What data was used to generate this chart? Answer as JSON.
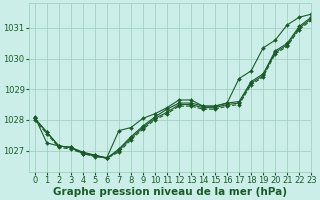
{
  "background_color": "#cceee8",
  "grid_color": "#99ccbb",
  "line_color": "#1a5c28",
  "xlabel": "Graphe pression niveau de la mer (hPa)",
  "xlabel_fontsize": 7.5,
  "tick_fontsize": 6,
  "xlim": [
    -0.5,
    23
  ],
  "ylim": [
    1026.3,
    1031.8
  ],
  "yticks": [
    1027,
    1028,
    1029,
    1030,
    1031
  ],
  "xticks": [
    0,
    1,
    2,
    3,
    4,
    5,
    6,
    7,
    8,
    9,
    10,
    11,
    12,
    13,
    14,
    15,
    16,
    17,
    18,
    19,
    20,
    21,
    22,
    23
  ],
  "series": [
    {
      "x": [
        0,
        1,
        2,
        3,
        4,
        5,
        6,
        7,
        8,
        9,
        10,
        11,
        12,
        13,
        14,
        15,
        16,
        17,
        18,
        19,
        20,
        21,
        22,
        23
      ],
      "y": [
        1028.05,
        1027.6,
        1027.15,
        1027.1,
        1026.95,
        1026.85,
        1026.75,
        1027.05,
        1027.45,
        1027.8,
        1028.1,
        1028.35,
        1028.55,
        1028.55,
        1028.45,
        1028.45,
        1028.55,
        1028.6,
        1029.25,
        1029.5,
        1030.25,
        1030.5,
        1031.05,
        1031.35
      ],
      "linestyle": "-",
      "marker": true
    },
    {
      "x": [
        0,
        1,
        2,
        3,
        4,
        5,
        6,
        7,
        8,
        9,
        10,
        11,
        12,
        13,
        14,
        15,
        16,
        17,
        18,
        19,
        20,
        21,
        22,
        23
      ],
      "y": [
        1028.05,
        1027.6,
        1027.15,
        1027.1,
        1026.9,
        1026.85,
        1026.75,
        1027.0,
        1027.4,
        1027.75,
        1028.05,
        1028.25,
        1028.5,
        1028.5,
        1028.4,
        1028.4,
        1028.5,
        1028.55,
        1029.2,
        1029.45,
        1030.2,
        1030.45,
        1031.0,
        1031.3
      ],
      "linestyle": "-",
      "marker": true
    },
    {
      "x": [
        0,
        1,
        2,
        3,
        4,
        5,
        6,
        7,
        8,
        9,
        10,
        11,
        12,
        13,
        14,
        15,
        16,
        17,
        18,
        19,
        20,
        21,
        22,
        23
      ],
      "y": [
        1028.0,
        1027.55,
        1027.1,
        1027.05,
        1026.9,
        1026.8,
        1026.75,
        1026.95,
        1027.35,
        1027.7,
        1028.0,
        1028.2,
        1028.45,
        1028.45,
        1028.35,
        1028.35,
        1028.45,
        1028.5,
        1029.15,
        1029.4,
        1030.15,
        1030.4,
        1030.95,
        1031.25
      ],
      "linestyle": "--",
      "marker": true
    },
    {
      "x": [
        0,
        1,
        2,
        3,
        4,
        5,
        6,
        7,
        8,
        9,
        10,
        11,
        12,
        13,
        14,
        15,
        16,
        17,
        18,
        19,
        20,
        21,
        22,
        23
      ],
      "y": [
        1028.1,
        1027.25,
        1027.15,
        1027.1,
        1026.92,
        1026.82,
        1026.77,
        1027.65,
        1027.75,
        1028.05,
        1028.2,
        1028.4,
        1028.65,
        1028.65,
        1028.45,
        1028.45,
        1028.55,
        1029.35,
        1029.6,
        1030.35,
        1030.6,
        1031.1,
        1031.35,
        1031.45
      ],
      "linestyle": "-",
      "marker": true
    }
  ]
}
